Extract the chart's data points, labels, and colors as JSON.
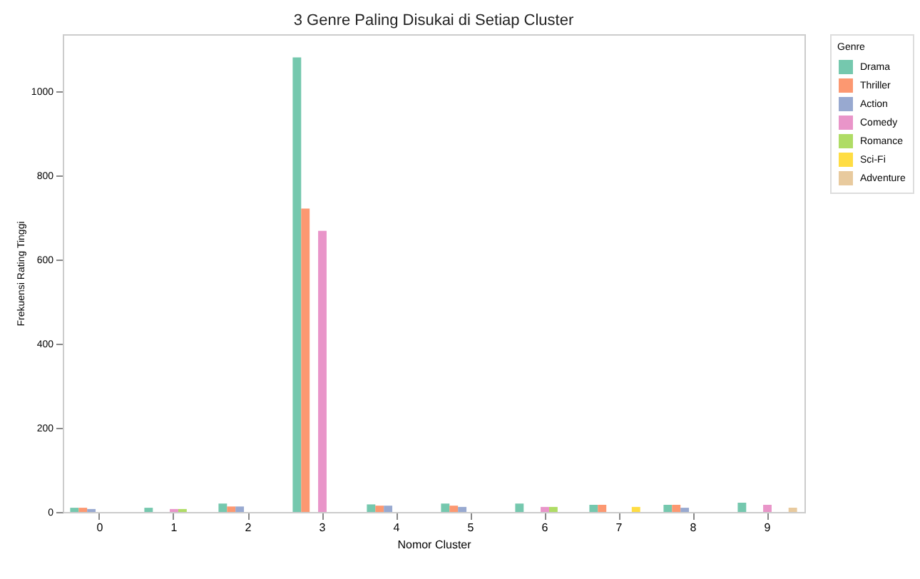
{
  "chart_data": {
    "type": "bar",
    "title": "3 Genre Paling Disukai di Setiap Cluster",
    "xlabel": "Nomor Cluster",
    "ylabel": "Frekuensi Rating Tinggi",
    "legend_title": "Genre",
    "legend": "top right",
    "grid": false,
    "categories": [
      "0",
      "1",
      "2",
      "3",
      "4",
      "5",
      "6",
      "7",
      "8",
      "9"
    ],
    "ylim": [
      0,
      1135
    ],
    "yticks": [
      0,
      200,
      400,
      600,
      800,
      1000
    ],
    "series": [
      {
        "name": "Drama",
        "color": "#66c2a5",
        "values": [
          10,
          10,
          20,
          1080,
          18,
          20,
          20,
          17,
          17,
          22
        ]
      },
      {
        "name": "Thriller",
        "color": "#fc8d62",
        "values": [
          10,
          null,
          13,
          721,
          15,
          15,
          null,
          17,
          17,
          null
        ]
      },
      {
        "name": "Action",
        "color": "#8da0cb",
        "values": [
          7,
          null,
          13,
          null,
          15,
          12,
          null,
          null,
          10,
          null
        ]
      },
      {
        "name": "Comedy",
        "color": "#e78ac3",
        "values": [
          null,
          7,
          null,
          668,
          null,
          null,
          12,
          null,
          null,
          17
        ]
      },
      {
        "name": "Romance",
        "color": "#a6d854",
        "values": [
          null,
          7,
          null,
          null,
          null,
          null,
          12,
          null,
          null,
          null
        ]
      },
      {
        "name": "Sci-Fi",
        "color": "#ffd92f",
        "values": [
          null,
          null,
          null,
          null,
          null,
          null,
          null,
          12,
          null,
          null
        ]
      },
      {
        "name": "Adventure",
        "color": "#e5c494",
        "values": [
          null,
          null,
          null,
          null,
          null,
          null,
          null,
          null,
          null,
          10
        ]
      }
    ]
  }
}
